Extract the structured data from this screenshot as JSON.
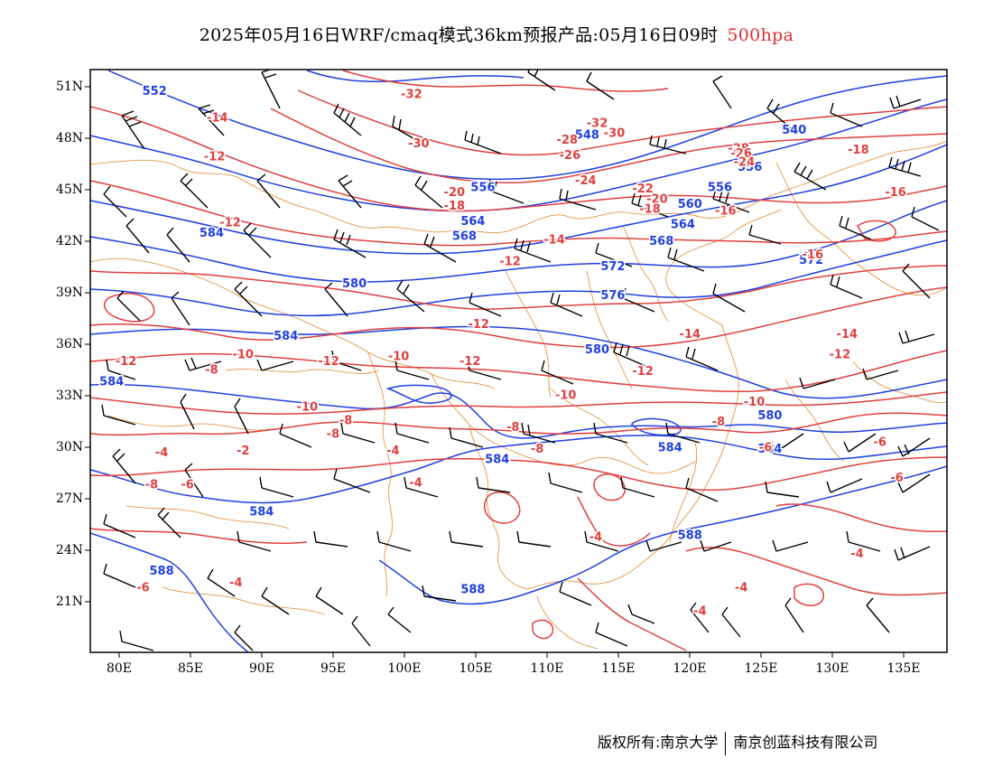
{
  "title": {
    "main": "2025年05月16日WRF/cmaq模式36km预报产品:05月16日09时",
    "level": "500hpa"
  },
  "lat_labels": [
    "51N",
    "48N",
    "45N",
    "42N",
    "39N",
    "36N",
    "33N",
    "30N",
    "27N",
    "24N",
    "21N"
  ],
  "lon_labels": [
    "80E",
    "85E",
    "90E",
    "95E",
    "100E",
    "105E",
    "110E",
    "115E",
    "120E",
    "125E",
    "130E",
    "135E"
  ],
  "footer": {
    "left": "版权所有:南京大学",
    "right": "南京创蓝科技有限公司"
  },
  "colors": {
    "geopotential": "#2040e0",
    "temperature": "#e04040",
    "boundary": "#e08a30",
    "wind": "#000000",
    "title_level": "#e03030"
  },
  "map": {
    "extent": {
      "lon": [
        78,
        138
      ],
      "lat": [
        18,
        52.5
      ]
    },
    "height_labels": [
      {
        "text": "552",
        "lon": 82.5,
        "lat": 51.2
      },
      {
        "text": "548",
        "lon": 112.8,
        "lat": 48.6
      },
      {
        "text": "540",
        "lon": 127.3,
        "lat": 48.9
      },
      {
        "text": "556",
        "lon": 124.2,
        "lat": 46.7
      },
      {
        "text": "556",
        "lon": 105.5,
        "lat": 45.5
      },
      {
        "text": "556",
        "lon": 122.1,
        "lat": 45.5
      },
      {
        "text": "560",
        "lon": 120.0,
        "lat": 44.5
      },
      {
        "text": "564",
        "lon": 104.8,
        "lat": 43.5
      },
      {
        "text": "564",
        "lon": 119.5,
        "lat": 43.3
      },
      {
        "text": "568",
        "lon": 104.2,
        "lat": 42.6
      },
      {
        "text": "568",
        "lon": 118.0,
        "lat": 42.3
      },
      {
        "text": "584",
        "lon": 86.5,
        "lat": 42.8
      },
      {
        "text": "572",
        "lon": 128.5,
        "lat": 41.2
      },
      {
        "text": "572",
        "lon": 114.6,
        "lat": 40.8
      },
      {
        "text": "576",
        "lon": 114.6,
        "lat": 39.1
      },
      {
        "text": "580",
        "lon": 96.5,
        "lat": 39.8
      },
      {
        "text": "584",
        "lon": 91.7,
        "lat": 36.7
      },
      {
        "text": "580",
        "lon": 113.5,
        "lat": 35.9
      },
      {
        "text": "584",
        "lon": 79.5,
        "lat": 34.0
      },
      {
        "text": "580",
        "lon": 125.6,
        "lat": 32.0
      },
      {
        "text": "584",
        "lon": 106.5,
        "lat": 29.4
      },
      {
        "text": "584",
        "lon": 118.6,
        "lat": 30.1
      },
      {
        "text": "584",
        "lon": 125.6,
        "lat": 30.0
      },
      {
        "text": "584",
        "lon": 90.0,
        "lat": 26.3
      },
      {
        "text": "588",
        "lon": 120.0,
        "lat": 24.9
      },
      {
        "text": "588",
        "lon": 104.8,
        "lat": 21.7
      },
      {
        "text": "588",
        "lon": 83.0,
        "lat": 22.8
      }
    ],
    "temp_labels": [
      {
        "text": "-32",
        "lon": 100.5,
        "lat": 51.0
      },
      {
        "text": "-32",
        "lon": 113.5,
        "lat": 49.3
      },
      {
        "text": "-30",
        "lon": 114.7,
        "lat": 48.7
      },
      {
        "text": "-30",
        "lon": 101.0,
        "lat": 48.1
      },
      {
        "text": "-28",
        "lon": 111.4,
        "lat": 48.3
      },
      {
        "text": "-26",
        "lon": 111.6,
        "lat": 47.4
      },
      {
        "text": "-28",
        "lon": 123.4,
        "lat": 47.8
      },
      {
        "text": "-26",
        "lon": 123.6,
        "lat": 47.5
      },
      {
        "text": "-24",
        "lon": 123.8,
        "lat": 47.0
      },
      {
        "text": "-18",
        "lon": 131.8,
        "lat": 47.7
      },
      {
        "text": "-24",
        "lon": 112.7,
        "lat": 45.9
      },
      {
        "text": "-14",
        "lon": 86.9,
        "lat": 49.6
      },
      {
        "text": "-12",
        "lon": 86.7,
        "lat": 47.3
      },
      {
        "text": "-22",
        "lon": 116.7,
        "lat": 45.4
      },
      {
        "text": "-20",
        "lon": 117.7,
        "lat": 44.8
      },
      {
        "text": "-20",
        "lon": 103.5,
        "lat": 45.2
      },
      {
        "text": "-18",
        "lon": 103.5,
        "lat": 44.4
      },
      {
        "text": "-18",
        "lon": 117.2,
        "lat": 44.2
      },
      {
        "text": "-16",
        "lon": 122.5,
        "lat": 44.1
      },
      {
        "text": "-16",
        "lon": 134.4,
        "lat": 45.2
      },
      {
        "text": "-12",
        "lon": 87.8,
        "lat": 43.4
      },
      {
        "text": "-14",
        "lon": 110.5,
        "lat": 42.4
      },
      {
        "text": "-16",
        "lon": 128.6,
        "lat": 41.5
      },
      {
        "text": "-12",
        "lon": 107.4,
        "lat": 41.1
      },
      {
        "text": "-12",
        "lon": 105.2,
        "lat": 37.4
      },
      {
        "text": "-14",
        "lon": 120.0,
        "lat": 36.8
      },
      {
        "text": "-14",
        "lon": 131.0,
        "lat": 36.8
      },
      {
        "text": "-12",
        "lon": 130.5,
        "lat": 35.6
      },
      {
        "text": "-12",
        "lon": 80.5,
        "lat": 35.2
      },
      {
        "text": "-10",
        "lon": 88.7,
        "lat": 35.6
      },
      {
        "text": "-12",
        "lon": 94.7,
        "lat": 35.2
      },
      {
        "text": "-10",
        "lon": 99.6,
        "lat": 35.5
      },
      {
        "text": "-12",
        "lon": 104.6,
        "lat": 35.2
      },
      {
        "text": "-8",
        "lon": 86.5,
        "lat": 34.7
      },
      {
        "text": "-12",
        "lon": 116.7,
        "lat": 34.6
      },
      {
        "text": "-10",
        "lon": 111.3,
        "lat": 33.2
      },
      {
        "text": "-10",
        "lon": 124.5,
        "lat": 32.8
      },
      {
        "text": "-10",
        "lon": 93.2,
        "lat": 32.5
      },
      {
        "text": "-8",
        "lon": 95.9,
        "lat": 31.7
      },
      {
        "text": "-8",
        "lon": 122.0,
        "lat": 31.6
      },
      {
        "text": "-8",
        "lon": 95.0,
        "lat": 30.9
      },
      {
        "text": "-8",
        "lon": 107.6,
        "lat": 31.3
      },
      {
        "text": "-8",
        "lon": 109.3,
        "lat": 30.0
      },
      {
        "text": "-6",
        "lon": 125.3,
        "lat": 30.1
      },
      {
        "text": "-6",
        "lon": 133.3,
        "lat": 30.4
      },
      {
        "text": "-4",
        "lon": 83.0,
        "lat": 29.8
      },
      {
        "text": "-2",
        "lon": 88.7,
        "lat": 29.9
      },
      {
        "text": "-4",
        "lon": 99.2,
        "lat": 29.9
      },
      {
        "text": "-8",
        "lon": 82.3,
        "lat": 27.9
      },
      {
        "text": "-6",
        "lon": 84.8,
        "lat": 27.9
      },
      {
        "text": "-4",
        "lon": 100.8,
        "lat": 28.0
      },
      {
        "text": "-6",
        "lon": 134.5,
        "lat": 28.3
      },
      {
        "text": "-4",
        "lon": 113.4,
        "lat": 24.8
      },
      {
        "text": "-4",
        "lon": 131.7,
        "lat": 23.8
      },
      {
        "text": "-4",
        "lon": 123.6,
        "lat": 21.8
      },
      {
        "text": "-6",
        "lon": 81.7,
        "lat": 21.8
      },
      {
        "text": "-4",
        "lon": 88.2,
        "lat": 22.1
      },
      {
        "text": "-4",
        "lon": 120.7,
        "lat": 20.4
      }
    ]
  }
}
